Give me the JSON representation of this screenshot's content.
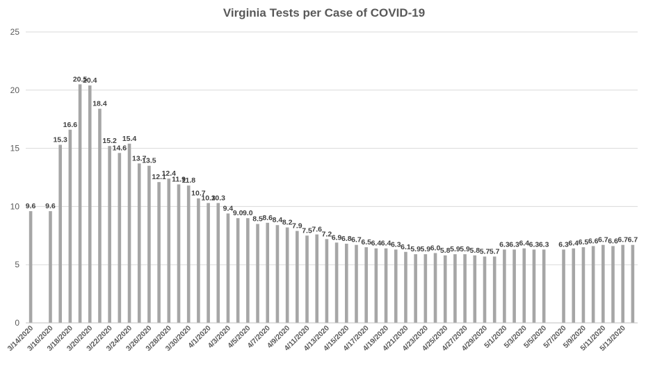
{
  "chart_data": {
    "type": "bar",
    "title": "Virginia Tests per Case of COVID-19",
    "xlabel": "",
    "ylabel": "",
    "ylim": [
      0,
      25
    ],
    "yticks": [
      0,
      5,
      10,
      15,
      20,
      25
    ],
    "grid": true,
    "bar_color": "#a6a6a6",
    "categories": [
      "3/14/2020",
      "3/15/2020",
      "3/16/2020",
      "3/17/2020",
      "3/18/2020",
      "3/19/2020",
      "3/20/2020",
      "3/21/2020",
      "3/22/2020",
      "3/23/2020",
      "3/24/2020",
      "3/25/2020",
      "3/26/2020",
      "3/27/2020",
      "3/28/2020",
      "3/29/2020",
      "3/30/2020",
      "3/31/2020",
      "4/1/2020",
      "4/2/2020",
      "4/3/2020",
      "4/4/2020",
      "4/5/2020",
      "4/6/2020",
      "4/7/2020",
      "4/8/2020",
      "4/9/2020",
      "4/10/2020",
      "4/11/2020",
      "4/12/2020",
      "4/13/2020",
      "4/14/2020",
      "4/15/2020",
      "4/16/2020",
      "4/17/2020",
      "4/18/2020",
      "4/19/2020",
      "4/20/2020",
      "4/21/2020",
      "4/22/2020",
      "4/23/2020",
      "4/24/2020",
      "4/25/2020",
      "4/26/2020",
      "4/27/2020",
      "4/28/2020",
      "4/29/2020",
      "4/30/2020",
      "5/1/2020",
      "5/2/2020",
      "5/3/2020",
      "5/4/2020",
      "5/5/2020",
      "5/6/2020",
      "5/7/2020",
      "5/8/2020",
      "5/9/2020",
      "5/10/2020",
      "5/11/2020",
      "5/12/2020",
      "5/13/2020",
      "5/14/2020"
    ],
    "xticklabels": [
      "3/14/2020",
      "",
      "3/16/2020",
      "",
      "3/18/2020",
      "",
      "3/20/2020",
      "",
      "3/22/2020",
      "",
      "3/24/2020",
      "",
      "3/26/2020",
      "",
      "3/28/2020",
      "",
      "3/30/2020",
      "",
      "4/1/2020",
      "",
      "4/3/2020",
      "",
      "4/5/2020",
      "",
      "4/7/2020",
      "",
      "4/9/2020",
      "",
      "4/11/2020",
      "",
      "4/13/2020",
      "",
      "4/15/2020",
      "",
      "4/17/2020",
      "",
      "4/19/2020",
      "",
      "4/21/2020",
      "",
      "4/23/2020",
      "",
      "4/25/2020",
      "",
      "4/27/2020",
      "",
      "4/29/2020",
      "",
      "5/1/2020",
      "",
      "5/3/2020",
      "",
      "5/5/2020",
      "",
      "5/7/2020",
      "",
      "5/9/2020",
      "",
      "5/11/2020",
      "",
      "5/13/2020",
      ""
    ],
    "values": [
      9.6,
      null,
      9.6,
      15.3,
      16.6,
      20.5,
      20.4,
      18.4,
      15.2,
      14.6,
      15.4,
      13.7,
      13.5,
      12.1,
      12.4,
      11.9,
      11.8,
      10.7,
      10.3,
      10.3,
      9.4,
      9.0,
      9.0,
      8.5,
      8.6,
      8.4,
      8.2,
      7.9,
      7.5,
      7.6,
      7.2,
      6.9,
      6.8,
      6.7,
      6.5,
      6.4,
      6.4,
      6.3,
      6.1,
      5.9,
      5.9,
      6.0,
      5.8,
      5.9,
      5.9,
      5.8,
      5.7,
      5.7,
      6.3,
      6.3,
      6.4,
      6.3,
      6.3,
      null,
      6.3,
      6.4,
      6.5,
      6.6,
      6.7,
      6.6,
      6.7,
      6.7
    ],
    "data_labels": [
      "9.6",
      "",
      "9.6",
      "15.3",
      "16.6",
      "20.5",
      "20.4",
      "18.4",
      "15.2",
      "14.6",
      "15.4",
      "13.7",
      "13.5",
      "12.1",
      "12.4",
      "11.9",
      "11.8",
      "10.7",
      "10.3",
      "10.3",
      "9.4",
      "9.0",
      "9.0",
      "8.5",
      "8.6",
      "8.4",
      "8.2",
      "7.9",
      "7.5",
      "7.6",
      "7.2",
      "6.9",
      "6.8",
      "6.7",
      "6.5",
      "6.4",
      "6.4",
      "6.3",
      "6.1",
      "5.9",
      "5.9",
      "6.0",
      "5.8",
      "5.9",
      "5.9",
      "5.8",
      "5.7",
      "5.7",
      "6.3",
      "6.3",
      "6.4",
      "6.3",
      "6.3",
      "",
      "6.3",
      "6.4",
      "6.5",
      "6.6",
      "6.7",
      "6.6",
      "6.7",
      "6.7"
    ]
  }
}
